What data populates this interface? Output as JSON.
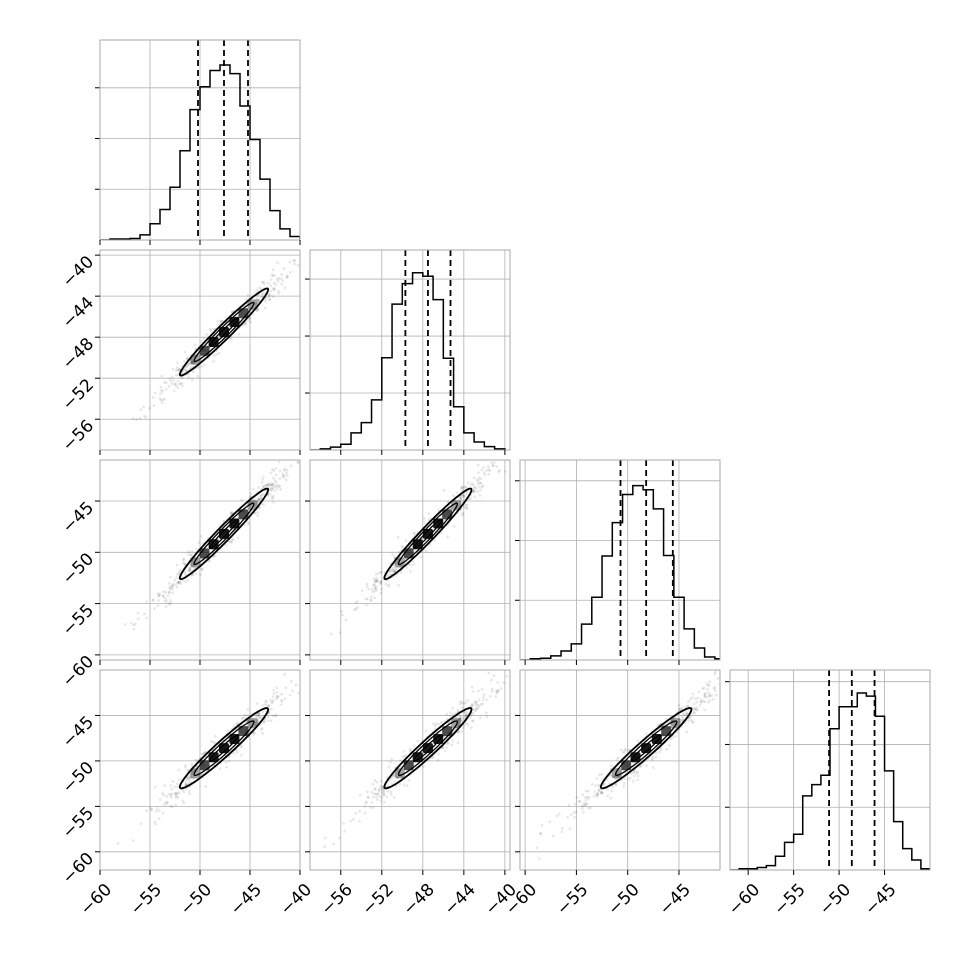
{
  "chart_data": {
    "type": "corner",
    "title": "",
    "n_params": 4,
    "grid": true,
    "colors": {
      "line": "#000000",
      "frame": "#aaaaaa",
      "grid": "#b0b0b0",
      "background": "#ffffff",
      "points": "#000000"
    },
    "quantiles_shown": [
      0.16,
      0.5,
      0.84
    ],
    "axes": [
      {
        "index": 0,
        "label": "",
        "range": [
          -60,
          -40
        ],
        "ticks": [
          -60,
          -55,
          -50,
          -45,
          -40
        ],
        "tick_labels": [
          "−60",
          "−55",
          "−50",
          "−45",
          "−40"
        ]
      },
      {
        "index": 1,
        "label": "",
        "range": [
          -59,
          -39.5
        ],
        "ticks": [
          -56,
          -52,
          -48,
          -44,
          -40
        ],
        "tick_labels": [
          "−56",
          "−52",
          "−48",
          "−44",
          "−40"
        ]
      },
      {
        "index": 2,
        "label": "",
        "range": [
          -60.5,
          -41
        ],
        "ticks": [
          -60,
          -55,
          -50,
          -45
        ],
        "tick_labels": [
          "−60",
          "−55",
          "−50",
          "−45"
        ]
      },
      {
        "index": 3,
        "label": "",
        "range": [
          -62,
          -40
        ],
        "ticks": [
          -60,
          -55,
          -50,
          -45
        ],
        "tick_labels": [
          "−60",
          "−55",
          "−50",
          "−45"
        ]
      }
    ],
    "histograms": [
      {
        "param": 0,
        "quantiles": [
          -50.2,
          -47.6,
          -45.2
        ],
        "max_count": 3.65,
        "edges": [
          -60,
          -59,
          -58,
          -57,
          -56,
          -55,
          -54,
          -53,
          -52,
          -51,
          -50,
          -49,
          -48,
          -47,
          -46,
          -45,
          -44,
          -43,
          -42,
          -41,
          -40
        ],
        "counts": [
          0.0,
          0.02,
          0.02,
          0.03,
          0.1,
          0.32,
          0.6,
          1.04,
          1.76,
          2.57,
          3.02,
          3.34,
          3.45,
          3.28,
          2.64,
          1.98,
          1.2,
          0.58,
          0.22,
          0.07
        ]
      },
      {
        "param": 1,
        "quantiles": [
          -49.7,
          -47.5,
          -45.3
        ],
        "max_count": 3.25,
        "edges": [
          -59,
          -58,
          -57,
          -56,
          -55,
          -54,
          -53,
          -52,
          -51,
          -50,
          -49,
          -48,
          -47,
          -46,
          -45,
          -44,
          -43,
          -42,
          -41,
          -40
        ],
        "counts": [
          0.0,
          0.02,
          0.05,
          0.1,
          0.3,
          0.48,
          0.88,
          1.62,
          2.56,
          2.92,
          3.11,
          3.05,
          2.64,
          1.61,
          0.76,
          0.3,
          0.14,
          0.06,
          0.02
        ]
      },
      {
        "param": 2,
        "quantiles": [
          -50.7,
          -48.2,
          -45.6
        ],
        "max_count": 3.1,
        "edges": [
          -60.5,
          -59.5,
          -58.5,
          -57.5,
          -56.5,
          -55.5,
          -54.5,
          -53.5,
          -52.5,
          -51.5,
          -50.5,
          -49.5,
          -48.5,
          -47.5,
          -46.5,
          -45.5,
          -44.5,
          -43.5,
          -42.5,
          -41.5,
          -41
        ],
        "counts": [
          0.0,
          0.02,
          0.03,
          0.07,
          0.15,
          0.27,
          0.6,
          1.05,
          1.74,
          2.3,
          2.77,
          2.92,
          2.85,
          2.53,
          1.75,
          1.05,
          0.52,
          0.2,
          0.05,
          0.02
        ]
      },
      {
        "param": 3,
        "quantiles": [
          -51.1,
          -48.6,
          -46.1
        ],
        "max_count": 2.95,
        "edges": [
          -62,
          -61,
          -60,
          -59,
          -58,
          -57,
          -56,
          -55,
          -54,
          -53,
          -52,
          -51,
          -50,
          -49,
          -48,
          -47,
          -46,
          -45,
          -44,
          -43,
          -42,
          -41,
          -40
        ],
        "counts": [
          0.0,
          0.02,
          0.02,
          0.04,
          0.07,
          0.22,
          0.44,
          0.57,
          1.18,
          1.36,
          1.51,
          2.25,
          2.6,
          2.6,
          2.82,
          2.77,
          2.45,
          1.58,
          0.77,
          0.34,
          0.16,
          0.02
        ]
      }
    ],
    "pairs": [
      {
        "x_param": 0,
        "y_param": 1,
        "mean": [
          -47.6,
          -47.5
        ],
        "contour_sigma": [
          2.6,
          2.5
        ],
        "rho": 0.975,
        "scatter_extent": [
          -59,
          -40
        ]
      },
      {
        "x_param": 0,
        "y_param": 2,
        "mean": [
          -47.6,
          -48.2
        ],
        "contour_sigma": [
          2.6,
          2.6
        ],
        "rho": 0.975,
        "scatter_extent": [
          -59,
          -40
        ]
      },
      {
        "x_param": 1,
        "y_param": 2,
        "mean": [
          -47.5,
          -48.2
        ],
        "contour_sigma": [
          2.5,
          2.6
        ],
        "rho": 0.975,
        "scatter_extent": [
          -58,
          -40
        ]
      },
      {
        "x_param": 0,
        "y_param": 3,
        "mean": [
          -47.6,
          -48.6
        ],
        "contour_sigma": [
          2.6,
          2.6
        ],
        "rho": 0.965,
        "scatter_extent": [
          -59,
          -40
        ]
      },
      {
        "x_param": 1,
        "y_param": 3,
        "mean": [
          -47.5,
          -48.6
        ],
        "contour_sigma": [
          2.5,
          2.6
        ],
        "rho": 0.965,
        "scatter_extent": [
          -58,
          -40
        ]
      },
      {
        "x_param": 2,
        "y_param": 3,
        "mean": [
          -48.2,
          -48.6
        ],
        "contour_sigma": [
          2.6,
          2.6
        ],
        "rho": 0.965,
        "scatter_extent": [
          -58,
          -41.5
        ]
      }
    ]
  }
}
